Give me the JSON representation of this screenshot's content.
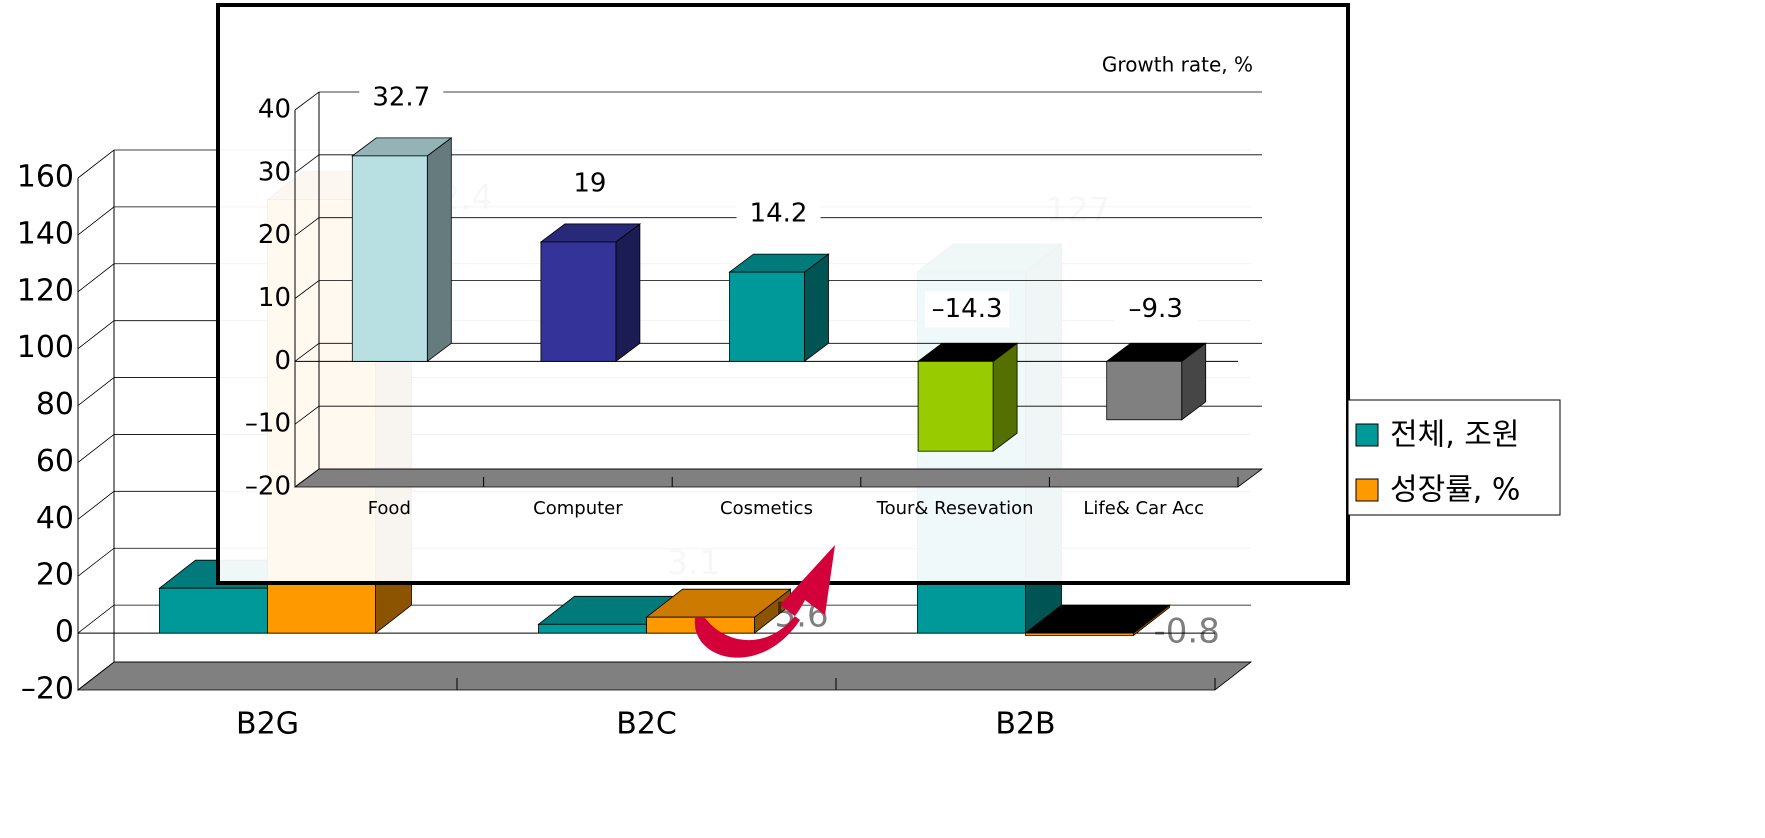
{
  "chart_data": [
    {
      "type": "bar3d",
      "categories": [
        "B2G",
        "B2C",
        "B2B"
      ],
      "series": [
        {
          "name": "전체, 조원",
          "color": "#009999",
          "values": [
            15.8,
            3.1,
            127
          ]
        },
        {
          "name": "성장률, %",
          "color": "#ff9900",
          "values": [
            152.4,
            5.6,
            -0.8
          ]
        }
      ],
      "ylim": [
        -20,
        160
      ],
      "yticks": [
        {
          "value": -20,
          "label": "–20"
        },
        0,
        20,
        40,
        60,
        80,
        100,
        120,
        140,
        160
      ],
      "grid": true,
      "legend": "right"
    },
    {
      "type": "bar3d-inset",
      "title": "Growth rate, %",
      "categories": [
        "Food",
        "Computer",
        "Cosmetics",
        "Tour& Resevation",
        "Life& Car Acc"
      ],
      "values": [
        32.7,
        19,
        14.2,
        -14.3,
        -9.3
      ],
      "value_labels": [
        "32.7",
        "19",
        "14.2",
        "–14.3",
        "–9.3"
      ],
      "colors": [
        "#b8e0e3",
        "#333399",
        "#009999",
        "#99cc00",
        "#808080"
      ],
      "ylim": [
        -20,
        40
      ],
      "yticks": [
        {
          "value": -20,
          "label": "–20"
        },
        {
          "value": -10,
          "label": "–10"
        },
        0,
        10,
        20,
        30,
        40
      ],
      "grid": true
    }
  ]
}
